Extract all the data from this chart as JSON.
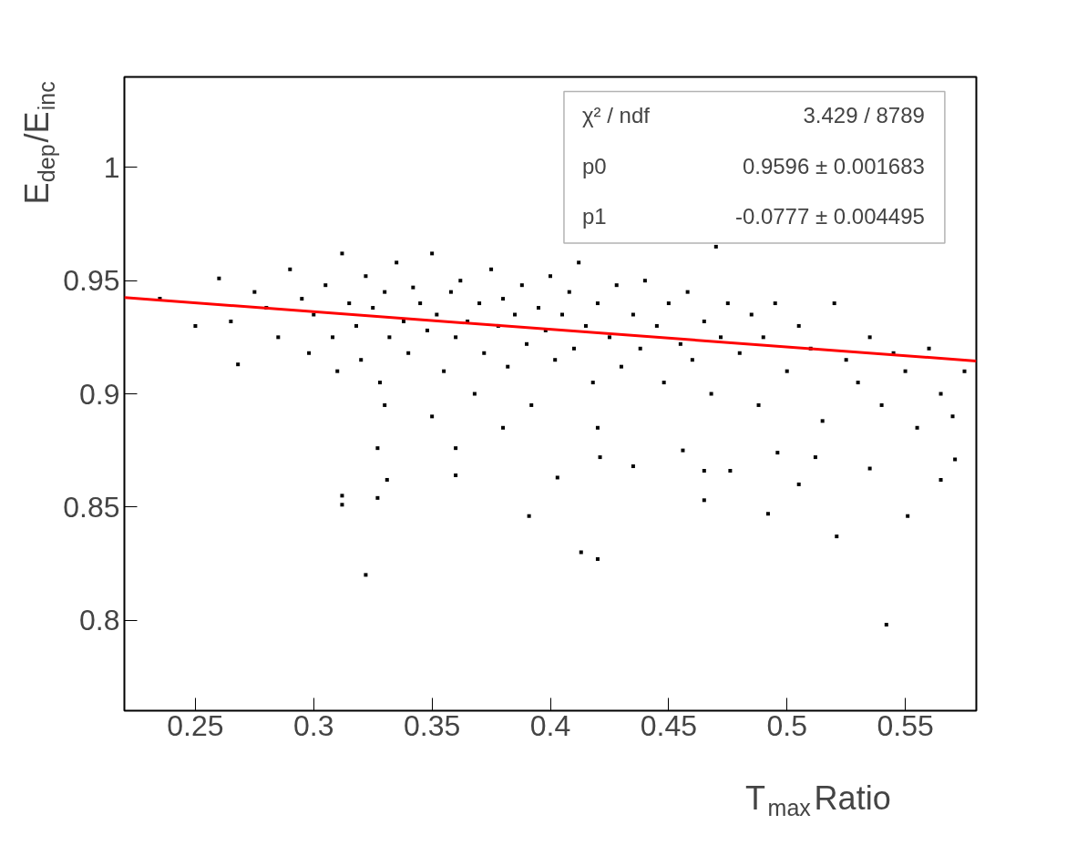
{
  "chart_data": {
    "type": "scatter",
    "xlabel": "T$_{max}$Ratio",
    "ylabel": "E$_{dep}$/E$_{inc}$",
    "xlim": [
      0.22,
      0.58
    ],
    "ylim": [
      0.76,
      1.04
    ],
    "xticks": [
      0.25,
      0.3,
      0.35,
      0.4,
      0.45,
      0.5,
      0.55
    ],
    "yticks": [
      0.8,
      0.85,
      0.9,
      0.95,
      1
    ],
    "grid": false,
    "marker": "square",
    "annotations": [
      "χ² / ndf",
      "3.429 / 8789",
      "p0",
      "0.9596 ± 0.001683",
      "p1",
      "-0.0777 ± 0.004495"
    ],
    "series": [
      {
        "color": "#000000",
        "x": [
          0.26,
          0.265,
          0.268,
          0.275,
          0.28,
          0.285,
          0.29,
          0.295,
          0.298,
          0.3,
          0.305,
          0.308,
          0.31,
          0.312,
          0.315,
          0.318,
          0.32,
          0.322,
          0.325,
          0.328,
          0.33,
          0.332,
          0.335,
          0.338,
          0.34,
          0.342,
          0.345,
          0.348,
          0.35,
          0.352,
          0.355,
          0.358,
          0.36,
          0.362,
          0.365,
          0.368,
          0.37,
          0.372,
          0.375,
          0.378,
          0.38,
          0.382,
          0.385,
          0.388,
          0.39,
          0.392,
          0.395,
          0.398,
          0.4,
          0.402,
          0.405,
          0.408,
          0.41,
          0.412,
          0.415,
          0.418,
          0.42,
          0.425,
          0.428,
          0.43,
          0.435,
          0.438,
          0.44,
          0.445,
          0.448,
          0.45,
          0.455,
          0.458,
          0.46,
          0.465,
          0.468,
          0.47,
          0.472,
          0.475,
          0.48,
          0.485,
          0.488,
          0.49,
          0.495,
          0.5,
          0.505,
          0.51,
          0.515,
          0.52,
          0.525,
          0.53,
          0.535,
          0.54,
          0.545,
          0.55,
          0.555,
          0.56,
          0.565,
          0.57,
          0.575,
          0.235,
          0.25,
          0.42,
          0.38,
          0.35,
          0.33,
          0.322,
          0.413,
          0.42,
          0.521,
          0.542,
          0.391,
          0.492,
          0.551,
          0.312,
          0.312,
          0.331,
          0.327,
          0.465,
          0.465,
          0.476,
          0.505,
          0.565,
          0.535,
          0.327,
          0.36,
          0.36,
          0.421,
          0.456,
          0.496,
          0.512,
          0.571,
          0.403,
          0.435
        ],
        "values": [
          0.951,
          0.932,
          0.913,
          0.945,
          0.938,
          0.925,
          0.955,
          0.942,
          0.918,
          0.935,
          0.948,
          0.925,
          0.91,
          0.962,
          0.94,
          0.93,
          0.915,
          0.952,
          0.938,
          0.905,
          0.945,
          0.925,
          0.958,
          0.932,
          0.918,
          0.947,
          0.94,
          0.928,
          0.962,
          0.935,
          0.91,
          0.945,
          0.925,
          0.95,
          0.932,
          0.9,
          0.94,
          0.918,
          0.955,
          0.93,
          0.942,
          0.912,
          0.935,
          0.948,
          0.922,
          0.895,
          0.938,
          0.928,
          0.952,
          0.915,
          0.935,
          0.945,
          0.92,
          0.958,
          0.93,
          0.905,
          0.94,
          0.925,
          0.948,
          0.912,
          0.935,
          0.92,
          0.95,
          0.93,
          0.905,
          0.94,
          0.922,
          0.945,
          0.915,
          0.932,
          0.9,
          0.965,
          0.925,
          0.94,
          0.918,
          0.935,
          0.895,
          0.925,
          0.94,
          0.91,
          0.93,
          0.92,
          0.888,
          0.94,
          0.915,
          0.905,
          0.925,
          0.895,
          0.918,
          0.91,
          0.885,
          0.92,
          0.9,
          0.89,
          0.91,
          0.942,
          0.93,
          0.885,
          0.885,
          0.89,
          0.895,
          0.82,
          0.83,
          0.827,
          0.837,
          0.798,
          0.846,
          0.847,
          0.846,
          0.851,
          0.855,
          0.862,
          0.854,
          0.853,
          0.866,
          0.866,
          0.86,
          0.862,
          0.867,
          0.876,
          0.876,
          0.864,
          0.872,
          0.875,
          0.874,
          0.872,
          0.871,
          0.863,
          0.868
        ]
      },
      {
        "type": "line",
        "color": "#ff0000",
        "marker": "none",
        "x": [
          0.22,
          0.58
        ],
        "values": [
          0.9425,
          0.9145
        ]
      }
    ]
  }
}
